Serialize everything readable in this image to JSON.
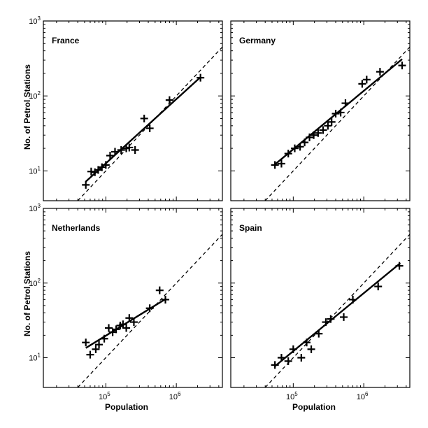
{
  "chart_data": {
    "type": "scatter",
    "scale": "log-log",
    "xlabel": "Population",
    "ylabel": "No. of Petrol Stations",
    "xlim": [
      13000,
      4500000
    ],
    "ylim": [
      4,
      1000
    ],
    "x_ticks": [
      {
        "value": 100000,
        "base": "10",
        "exp": "5"
      },
      {
        "value": 1000000,
        "base": "10",
        "exp": "6"
      }
    ],
    "y_ticks": [
      {
        "value": 10,
        "base": "10",
        "exp": "1"
      },
      {
        "value": 100,
        "base": "10",
        "exp": "2"
      },
      {
        "value": 1000,
        "base": "10",
        "exp": "3"
      }
    ],
    "marker": "+",
    "reference_line": "dashed diagonal",
    "fit_line": "solid",
    "panels": [
      {
        "title": "France",
        "points": [
          [
            52000,
            6.5
          ],
          [
            62000,
            9.8
          ],
          [
            70000,
            9.6
          ],
          [
            78000,
            10.3
          ],
          [
            88000,
            11.2
          ],
          [
            100000,
            12
          ],
          [
            115000,
            16
          ],
          [
            135000,
            18
          ],
          [
            165000,
            19
          ],
          [
            195000,
            20
          ],
          [
            215000,
            20.5
          ],
          [
            260000,
            19
          ],
          [
            350000,
            50
          ],
          [
            420000,
            37
          ],
          [
            800000,
            88
          ],
          [
            2200000,
            175
          ]
        ],
        "fit": [
          [
            52000,
            7.2
          ],
          [
            2200000,
            178
          ]
        ]
      },
      {
        "title": "Germany",
        "points": [
          [
            55000,
            12
          ],
          [
            68000,
            12.5
          ],
          [
            85000,
            17
          ],
          [
            105000,
            20
          ],
          [
            125000,
            21
          ],
          [
            145000,
            24
          ],
          [
            170000,
            28
          ],
          [
            195000,
            30
          ],
          [
            225000,
            32
          ],
          [
            265000,
            35
          ],
          [
            310000,
            40
          ],
          [
            350000,
            45
          ],
          [
            400000,
            58
          ],
          [
            470000,
            60
          ],
          [
            550000,
            80
          ],
          [
            950000,
            145
          ],
          [
            1100000,
            165
          ],
          [
            1700000,
            210
          ],
          [
            3500000,
            255
          ]
        ],
        "fit": [
          [
            55000,
            12.2
          ],
          [
            3500000,
            310
          ]
        ]
      },
      {
        "title": "Netherlands",
        "points": [
          [
            52000,
            16
          ],
          [
            60000,
            11
          ],
          [
            72000,
            13
          ],
          [
            80000,
            15
          ],
          [
            95000,
            18
          ],
          [
            110000,
            25
          ],
          [
            125000,
            22
          ],
          [
            140000,
            24
          ],
          [
            160000,
            27
          ],
          [
            175000,
            28
          ],
          [
            195000,
            25
          ],
          [
            215000,
            34
          ],
          [
            250000,
            30
          ],
          [
            420000,
            46
          ],
          [
            580000,
            80
          ],
          [
            700000,
            60
          ]
        ],
        "fit": [
          [
            52000,
            13.5
          ],
          [
            720000,
            62
          ]
        ]
      },
      {
        "title": "Spain",
        "points": [
          [
            55000,
            8
          ],
          [
            68000,
            10
          ],
          [
            85000,
            9
          ],
          [
            100000,
            13
          ],
          [
            130000,
            10
          ],
          [
            155000,
            16
          ],
          [
            180000,
            13
          ],
          [
            230000,
            21
          ],
          [
            290000,
            30
          ],
          [
            340000,
            33
          ],
          [
            520000,
            35
          ],
          [
            700000,
            60
          ],
          [
            1600000,
            90
          ],
          [
            3200000,
            170
          ]
        ],
        "fit": [
          [
            55000,
            7.7
          ],
          [
            3300000,
            185
          ]
        ]
      }
    ]
  }
}
